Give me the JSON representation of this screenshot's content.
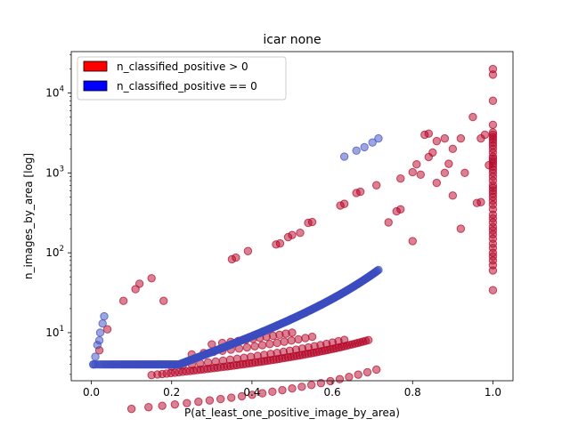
{
  "chart_data": {
    "type": "scatter",
    "title": "icar none",
    "xlabel": "P(at_least_one_positive_image_by_area)",
    "ylabel": "n_images_by_area [log]",
    "xlim": [
      -0.05,
      1.05
    ],
    "ylim": [
      2.5,
      33000
    ],
    "yscale": "log",
    "grid": false,
    "legend_position": "top-left",
    "x_ticks": [
      "0.0",
      "0.2",
      "0.4",
      "0.6",
      "0.8",
      "1.0"
    ],
    "y_ticks": [
      {
        "value": 10,
        "base": "10",
        "exp": "1"
      },
      {
        "value": 100,
        "base": "10",
        "exp": "2"
      },
      {
        "value": 1000,
        "base": "10",
        "exp": "3"
      },
      {
        "value": 10000,
        "base": "10",
        "exp": "4"
      }
    ],
    "series": [
      {
        "name": "n_classified_positive > 0",
        "legend_color": "#ff0000",
        "marker_color": "#b40426",
        "curves": [
          {
            "k": 0,
            "xmax": 0.71,
            "n": 24
          },
          {
            "k": 1,
            "xmax": 0.69,
            "n": 70
          },
          {
            "k": 2,
            "xmax": 0.63,
            "n": 26
          },
          {
            "k": 3,
            "xmax": 0.55,
            "n": 16
          },
          {
            "k": 4,
            "xmax": 0.5,
            "n": 12
          }
        ],
        "points": [
          [
            0.02,
            6
          ],
          [
            0.04,
            11
          ],
          [
            0.08,
            25
          ],
          [
            0.11,
            35
          ],
          [
            0.12,
            41
          ],
          [
            0.15,
            48
          ],
          [
            0.18,
            25
          ],
          [
            0.35,
            83
          ],
          [
            0.36,
            87
          ],
          [
            0.39,
            105
          ],
          [
            0.46,
            127
          ],
          [
            0.47,
            131
          ],
          [
            0.49,
            157
          ],
          [
            0.5,
            167
          ],
          [
            0.52,
            178
          ],
          [
            0.54,
            237
          ],
          [
            0.55,
            243
          ],
          [
            0.62,
            390
          ],
          [
            0.63,
            410
          ],
          [
            0.66,
            560
          ],
          [
            0.67,
            580
          ],
          [
            0.71,
            700
          ],
          [
            0.74,
            240
          ],
          [
            0.76,
            330
          ],
          [
            0.77,
            350
          ],
          [
            0.8,
            140
          ],
          [
            0.77,
            850
          ],
          [
            0.8,
            1020
          ],
          [
            0.81,
            1280
          ],
          [
            0.82,
            950
          ],
          [
            0.84,
            1580
          ],
          [
            0.85,
            1800
          ],
          [
            0.86,
            750
          ],
          [
            0.88,
            1000
          ],
          [
            0.89,
            1300
          ],
          [
            0.83,
            3000
          ],
          [
            0.84,
            3100
          ],
          [
            0.86,
            2500
          ],
          [
            0.88,
            2700
          ],
          [
            0.9,
            2000
          ],
          [
            0.92,
            2700
          ],
          [
            0.93,
            1000
          ],
          [
            0.95,
            5000
          ],
          [
            0.96,
            420
          ],
          [
            0.97,
            2700
          ],
          [
            0.98,
            3000
          ],
          [
            0.99,
            1250
          ],
          [
            0.9,
            520
          ],
          [
            0.92,
            200
          ],
          [
            0.97,
            430
          ]
        ]
      },
      {
        "name": "n_classified_positive == 0",
        "legend_color": "#0000ff",
        "marker_color": "#3b4cc0",
        "curves": [
          {
            "k": 0,
            "xmax": 0.715,
            "n": 240
          }
        ],
        "points": [
          [
            0.005,
            4
          ],
          [
            0.01,
            5
          ],
          [
            0.015,
            7
          ],
          [
            0.02,
            8
          ],
          [
            0.022,
            10
          ],
          [
            0.028,
            13
          ],
          [
            0.032,
            16
          ],
          [
            0.005,
            4
          ],
          [
            0.63,
            1600
          ],
          [
            0.66,
            1900
          ],
          [
            0.68,
            2100
          ],
          [
            0.7,
            2400
          ],
          [
            0.715,
            2700
          ]
        ]
      }
    ],
    "vertical_cluster": {
      "series_index": 0,
      "x": 1.0,
      "values": [
        20000,
        17000,
        8000,
        4000,
        3200,
        3000,
        2800,
        2600,
        2400,
        2200,
        2000,
        1800,
        1600,
        1500,
        1400,
        1300,
        1200,
        1100,
        1000,
        900,
        800,
        700,
        650,
        600,
        550,
        500,
        450,
        400,
        350,
        300,
        270,
        240,
        210,
        190,
        170,
        150,
        130,
        115,
        100,
        90,
        80,
        70,
        60,
        34
      ]
    }
  }
}
